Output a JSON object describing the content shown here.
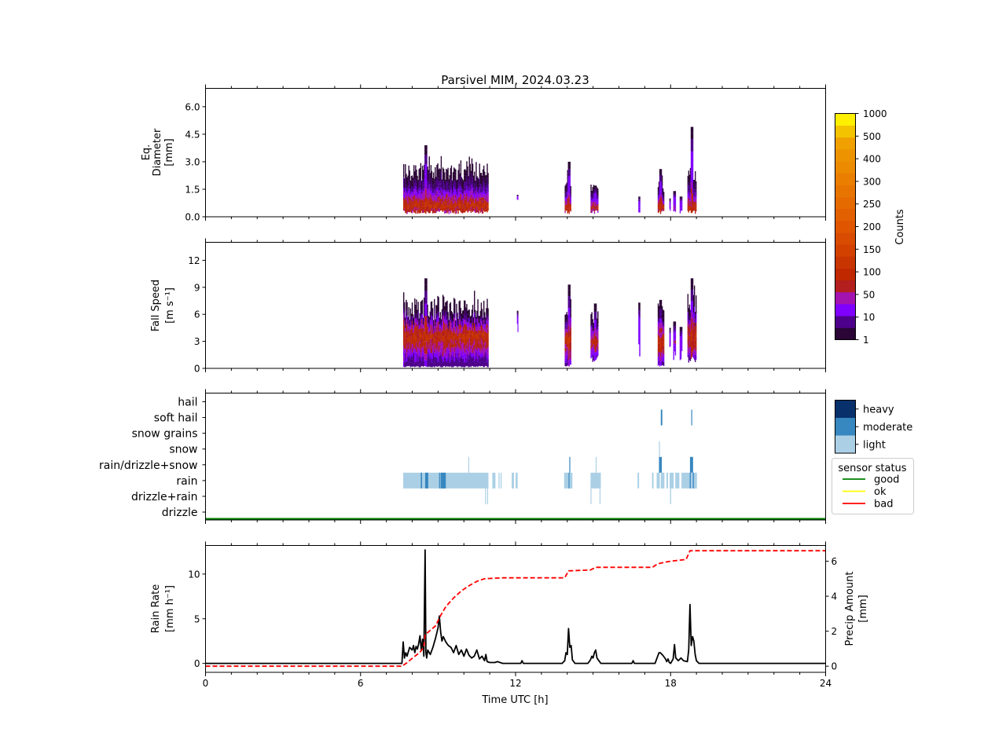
{
  "chart_data": {
    "title": "Parsivel MIM, 2024.03.23",
    "type": "heatmap",
    "x_axis": {
      "label": "Time UTC [h]",
      "range": [
        0,
        24
      ],
      "major_ticks": [
        0,
        6,
        12,
        18,
        24
      ],
      "tick_labels": [
        "0",
        "6",
        "12",
        "18",
        "24"
      ],
      "minor_step": 1
    },
    "panels": [
      {
        "id": "diameter",
        "type": "heatmap",
        "ylabel_lines": [
          "Eq.",
          "Diameter",
          "[mm]"
        ],
        "ylim": [
          0,
          7
        ],
        "yticks": [
          0,
          1.5,
          3,
          4.5,
          6
        ],
        "ytick_labels": [
          "0.0",
          "1.5",
          "3.0",
          "4.5",
          "6.0"
        ],
        "events": [
          {
            "t0": 7.65,
            "t1": 10.95,
            "ymin": 0.25,
            "peak": 0.6,
            "top": 2.6,
            "max": 3.9,
            "spike_t": 8.5,
            "intensity": 100
          },
          {
            "t0": 12.05,
            "t1": 12.1,
            "ymin": 0.8,
            "peak": 1.0,
            "top": 1.2,
            "max": 1.2,
            "spike_t": 12.07,
            "intensity": 5
          },
          {
            "t0": 13.9,
            "t1": 14.15,
            "ymin": 0.25,
            "peak": 0.5,
            "top": 2.0,
            "max": 3.0,
            "spike_t": 14.05,
            "intensity": 100
          },
          {
            "t0": 14.9,
            "t1": 15.2,
            "ymin": 0.25,
            "peak": 0.5,
            "top": 1.6,
            "max": 1.7,
            "spike_t": 15.05,
            "intensity": 80
          },
          {
            "t0": 16.75,
            "t1": 16.82,
            "ymin": 0.3,
            "peak": 0.5,
            "top": 1.1,
            "max": 1.1,
            "spike_t": 16.78,
            "intensity": 8
          },
          {
            "t0": 17.5,
            "t1": 17.75,
            "ymin": 0.25,
            "peak": 0.5,
            "top": 1.8,
            "max": 2.6,
            "spike_t": 17.6,
            "intensity": 100
          },
          {
            "t0": 17.95,
            "t1": 18.0,
            "ymin": 0.3,
            "peak": 0.5,
            "top": 1.0,
            "max": 1.0,
            "spike_t": 17.97,
            "intensity": 10
          },
          {
            "t0": 18.1,
            "t1": 18.2,
            "ymin": 0.25,
            "peak": 0.5,
            "top": 1.3,
            "max": 1.4,
            "spike_t": 18.15,
            "intensity": 50
          },
          {
            "t0": 18.35,
            "t1": 18.45,
            "ymin": 0.25,
            "peak": 0.5,
            "top": 1.0,
            "max": 1.1,
            "spike_t": 18.4,
            "intensity": 30
          },
          {
            "t0": 18.65,
            "t1": 19.0,
            "ymin": 0.25,
            "peak": 0.5,
            "top": 2.5,
            "max": 4.9,
            "spike_t": 18.8,
            "intensity": 100
          }
        ]
      },
      {
        "id": "fallspeed",
        "type": "heatmap",
        "ylabel_lines": [
          "Fall Speed",
          "[m s⁻¹]"
        ],
        "ylim": [
          0,
          14
        ],
        "yticks": [
          0,
          3,
          6,
          9,
          12
        ],
        "ytick_labels": [
          "0",
          "3",
          "6",
          "9",
          "12"
        ],
        "events": [
          {
            "t0": 7.65,
            "t1": 10.95,
            "ymin": 0.2,
            "peak": 3.5,
            "top": 7.0,
            "max": 10.0,
            "spike_t": 8.5,
            "intensity": 100
          },
          {
            "t0": 12.05,
            "t1": 12.1,
            "ymin": 5.5,
            "peak": 6.0,
            "top": 6.4,
            "max": 6.4,
            "spike_t": 12.07,
            "intensity": 5
          },
          {
            "t0": 13.9,
            "t1": 14.15,
            "ymin": 0.3,
            "peak": 3.0,
            "top": 7.0,
            "max": 9.3,
            "spike_t": 14.05,
            "intensity": 100
          },
          {
            "t0": 14.9,
            "t1": 15.2,
            "ymin": 1.0,
            "peak": 3.0,
            "top": 6.0,
            "max": 7.2,
            "spike_t": 15.05,
            "intensity": 80
          },
          {
            "t0": 16.75,
            "t1": 16.82,
            "ymin": 2.0,
            "peak": 3.5,
            "top": 7.3,
            "max": 7.3,
            "spike_t": 16.78,
            "intensity": 8
          },
          {
            "t0": 17.5,
            "t1": 17.75,
            "ymin": 0.3,
            "peak": 3.0,
            "top": 7.0,
            "max": 7.6,
            "spike_t": 17.6,
            "intensity": 100
          },
          {
            "t0": 17.95,
            "t1": 18.0,
            "ymin": 2.0,
            "peak": 3.0,
            "top": 4.5,
            "max": 4.5,
            "spike_t": 17.97,
            "intensity": 10
          },
          {
            "t0": 18.1,
            "t1": 18.2,
            "ymin": 1.5,
            "peak": 3.0,
            "top": 5.0,
            "max": 5.2,
            "spike_t": 18.15,
            "intensity": 50
          },
          {
            "t0": 18.35,
            "t1": 18.45,
            "ymin": 1.5,
            "peak": 3.0,
            "top": 4.5,
            "max": 4.6,
            "spike_t": 18.4,
            "intensity": 30
          },
          {
            "t0": 18.65,
            "t1": 19.0,
            "ymin": 1.0,
            "peak": 3.5,
            "top": 8.0,
            "max": 10.0,
            "spike_t": 18.8,
            "intensity": 100
          }
        ]
      },
      {
        "id": "precip_type",
        "type": "table",
        "categories": [
          "drizzle",
          "drizzle+rain",
          "rain",
          "rain/drizzle+snow",
          "snow",
          "snow grains",
          "soft hail",
          "hail"
        ],
        "intensity_legend": [
          {
            "label": "heavy",
            "color": "#08306b"
          },
          {
            "label": "moderate",
            "color": "#3787c0"
          },
          {
            "label": "light",
            "color": "#abd0e6"
          }
        ],
        "sensor_status_legend": {
          "title": "sensor status",
          "entries": [
            {
              "label": "good",
              "color": "#008000"
            },
            {
              "label": "ok",
              "color": "#ffff00"
            },
            {
              "label": "bad",
              "color": "#ff0000"
            }
          ]
        },
        "sensor_status": "good",
        "segments": [
          {
            "cat": "rain",
            "t0": 7.65,
            "t1": 10.95,
            "level": "light"
          },
          {
            "cat": "rain",
            "t0": 8.33,
            "t1": 8.38,
            "level": "moderate"
          },
          {
            "cat": "rain",
            "t0": 8.5,
            "t1": 8.62,
            "level": "moderate"
          },
          {
            "cat": "rain",
            "t0": 9.04,
            "t1": 9.07,
            "level": "moderate"
          },
          {
            "cat": "rain",
            "t0": 9.1,
            "t1": 9.3,
            "level": "moderate"
          },
          {
            "cat": "rain",
            "t0": 11.1,
            "t1": 11.22,
            "level": "light"
          },
          {
            "cat": "rain",
            "t0": 11.34,
            "t1": 11.38,
            "level": "light"
          },
          {
            "cat": "rain",
            "t0": 11.42,
            "t1": 11.46,
            "level": "light"
          },
          {
            "cat": "rain",
            "t0": 11.85,
            "t1": 11.94,
            "level": "light"
          },
          {
            "cat": "rain",
            "t0": 12.0,
            "t1": 12.08,
            "level": "light"
          },
          {
            "cat": "rain",
            "t0": 13.88,
            "t1": 14.2,
            "level": "light"
          },
          {
            "cat": "rain",
            "t0": 14.05,
            "t1": 14.08,
            "level": "moderate"
          },
          {
            "cat": "rain",
            "t0": 14.9,
            "t1": 15.3,
            "level": "light"
          },
          {
            "cat": "rain",
            "t0": 16.72,
            "t1": 16.78,
            "level": "light"
          },
          {
            "cat": "rain",
            "t0": 17.28,
            "t1": 17.34,
            "level": "light"
          },
          {
            "cat": "rain",
            "t0": 17.46,
            "t1": 17.58,
            "level": "light"
          },
          {
            "cat": "rain",
            "t0": 17.62,
            "t1": 17.76,
            "level": "light"
          },
          {
            "cat": "rain",
            "t0": 17.84,
            "t1": 17.9,
            "level": "light"
          },
          {
            "cat": "rain",
            "t0": 17.96,
            "t1": 18.12,
            "level": "light"
          },
          {
            "cat": "rain",
            "t0": 18.18,
            "t1": 18.34,
            "level": "light"
          },
          {
            "cat": "rain",
            "t0": 18.42,
            "t1": 19.02,
            "level": "light"
          },
          {
            "cat": "rain",
            "t0": 18.74,
            "t1": 18.78,
            "level": "moderate"
          },
          {
            "cat": "rain",
            "t0": 18.86,
            "t1": 18.9,
            "level": "moderate"
          },
          {
            "cat": "drizzle+rain",
            "t0": 10.82,
            "t1": 10.85,
            "level": "light"
          },
          {
            "cat": "drizzle+rain",
            "t0": 10.9,
            "t1": 10.93,
            "level": "light"
          },
          {
            "cat": "drizzle+rain",
            "t0": 14.9,
            "t1": 14.93,
            "level": "light"
          },
          {
            "cat": "drizzle+rain",
            "t0": 15.25,
            "t1": 15.28,
            "level": "light"
          },
          {
            "cat": "drizzle+rain",
            "t0": 17.98,
            "t1": 18.02,
            "level": "light"
          },
          {
            "cat": "rain/drizzle+snow",
            "t0": 10.17,
            "t1": 10.2,
            "level": "light"
          },
          {
            "cat": "rain/drizzle+snow",
            "t0": 14.08,
            "t1": 14.11,
            "level": "moderate"
          },
          {
            "cat": "rain/drizzle+snow",
            "t0": 15.1,
            "t1": 15.13,
            "level": "light"
          },
          {
            "cat": "rain/drizzle+snow",
            "t0": 17.55,
            "t1": 17.66,
            "level": "moderate"
          },
          {
            "cat": "rain/drizzle+snow",
            "t0": 18.75,
            "t1": 18.87,
            "level": "moderate"
          },
          {
            "cat": "snow",
            "t0": 17.55,
            "t1": 17.58,
            "level": "light"
          },
          {
            "cat": "soft hail",
            "t0": 17.62,
            "t1": 17.68,
            "level": "moderate"
          },
          {
            "cat": "soft hail",
            "t0": 18.8,
            "t1": 18.83,
            "level": "moderate"
          }
        ]
      },
      {
        "id": "rainrate",
        "type": "line",
        "ylabel_lines": [
          "Rain Rate",
          "[mm h⁻¹]"
        ],
        "ylim": [
          -1,
          13.2
        ],
        "yticks": [
          0,
          5,
          10
        ],
        "ytick_labels": [
          "0",
          "5",
          "10"
        ],
        "y2label_lines": [
          "Precip Amount",
          "[mm]"
        ],
        "y2lim": [
          -0.35,
          6.9
        ],
        "y2ticks": [
          0,
          2,
          4,
          6
        ],
        "y2tick_labels": [
          "0",
          "2",
          "4",
          "6"
        ],
        "series": [
          {
            "name": "rain rate",
            "color": "#000000",
            "style": "solid",
            "x": [
              0,
              7.6,
              7.65,
              7.7,
              7.75,
              7.8,
              7.9,
              8.0,
              8.05,
              8.1,
              8.15,
              8.2,
              8.25,
              8.3,
              8.35,
              8.4,
              8.45,
              8.5,
              8.53,
              8.56,
              8.6,
              8.7,
              8.8,
              8.9,
              9.0,
              9.05,
              9.1,
              9.15,
              9.2,
              9.3,
              9.4,
              9.5,
              9.6,
              9.7,
              9.8,
              9.9,
              10.0,
              10.1,
              10.2,
              10.3,
              10.4,
              10.5,
              10.6,
              10.7,
              10.8,
              10.85,
              10.9,
              11.0,
              11.2,
              11.3,
              11.5,
              12.2,
              12.25,
              12.3,
              13.8,
              13.9,
              13.95,
              14.0,
              14.05,
              14.1,
              14.15,
              14.2,
              14.3,
              14.8,
              14.9,
              14.95,
              15.0,
              15.05,
              15.1,
              15.15,
              15.2,
              15.3,
              16.5,
              16.55,
              16.6,
              17.4,
              17.5,
              17.55,
              17.6,
              17.7,
              17.8,
              17.85,
              17.9,
              17.95,
              18.0,
              18.1,
              18.15,
              18.2,
              18.3,
              18.4,
              18.5,
              18.65,
              18.7,
              18.75,
              18.8,
              18.85,
              18.9,
              18.95,
              19.0,
              19.1,
              24
            ],
            "y": [
              0,
              0,
              2.4,
              0.6,
              1.2,
              0.8,
              1.8,
              1.5,
              2.0,
              1.2,
              1.9,
              1.6,
              2.2,
              3.1,
              1.5,
              2.7,
              0.8,
              12.7,
              1.2,
              0.6,
              1.5,
              1.0,
              1.8,
              2.8,
              4.0,
              5.3,
              3.5,
              2.5,
              3.0,
              2.4,
              2.0,
              1.8,
              1.2,
              2.0,
              1.0,
              1.5,
              0.8,
              1.6,
              0.9,
              0.6,
              0.8,
              1.5,
              0.5,
              0.8,
              0.3,
              1.0,
              0.2,
              0.1,
              0.1,
              0.2,
              0,
              0,
              0.3,
              0,
              0,
              0.3,
              1.2,
              1.0,
              3.9,
              1.8,
              2.0,
              0.4,
              0,
              0,
              0.4,
              0.8,
              0.6,
              1.2,
              1.5,
              0.6,
              0.4,
              0,
              0,
              0.3,
              0,
              0,
              0.8,
              1.2,
              1.2,
              0.9,
              0.5,
              0.2,
              0.5,
              0.1,
              0,
              0.5,
              2.1,
              0.6,
              0.3,
              0.6,
              0.3,
              0.2,
              1.5,
              6.6,
              2.0,
              3.0,
              2.5,
              1.0,
              0.3,
              0,
              0
            ]
          },
          {
            "name": "precip amount",
            "color": "#ff0000",
            "style": "dashed",
            "axis": "right",
            "x": [
              0,
              7.6,
              7.8,
              8.0,
              8.3,
              8.45,
              8.5,
              8.7,
              8.9,
              9.1,
              9.3,
              9.6,
              9.9,
              10.2,
              10.5,
              10.8,
              11.5,
              12.0,
              13.9,
              14.05,
              14.9,
              15.1,
              17.3,
              17.5,
              17.8,
              18.0,
              18.3,
              18.6,
              18.75,
              19.0,
              24
            ],
            "y": [
              0,
              0,
              0.2,
              0.45,
              0.8,
              1.1,
              1.8,
              2.05,
              2.3,
              2.9,
              3.4,
              3.9,
              4.3,
              4.6,
              4.85,
              5.0,
              5.05,
              5.05,
              5.05,
              5.45,
              5.5,
              5.65,
              5.65,
              5.85,
              5.95,
              6.0,
              6.05,
              6.1,
              6.6,
              6.6,
              6.6
            ]
          }
        ]
      }
    ],
    "colorbar": {
      "label": "Counts",
      "tick_labels": [
        "1",
        "10",
        "50",
        "100",
        "150",
        "200",
        "250",
        "300",
        "400",
        "500",
        "1000"
      ],
      "colors": [
        "#2a0535",
        "#4d008b",
        "#7f00ff",
        "#a313b0",
        "#b31f1f",
        "#c02800",
        "#c93500",
        "#d24100",
        "#d84b00",
        "#df5500",
        "#e36000",
        "#e56a00",
        "#e87400",
        "#ea7e00",
        "#ec8a00",
        "#ee9300",
        "#f0a000",
        "#f3c300",
        "#fff000"
      ]
    }
  }
}
